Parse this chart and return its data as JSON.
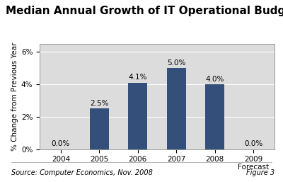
{
  "title": "Median Annual Growth of IT Operational Budgets",
  "categories": [
    "2004",
    "2005",
    "2006",
    "2007",
    "2008",
    "2009\nForecast"
  ],
  "values": [
    0.0,
    2.5,
    4.1,
    5.0,
    4.0,
    0.0
  ],
  "labels": [
    "0.0%",
    "2.5%",
    "4.1%",
    "5.0%",
    "4.0%",
    "0.0%"
  ],
  "bar_color": "#34507a",
  "ylabel": "% Change from Previous Year",
  "yticks": [
    0,
    2,
    4,
    6
  ],
  "ytick_labels": [
    "0%",
    "2%",
    "4%",
    "6%"
  ],
  "ylim": [
    0,
    6.5
  ],
  "source_text": "Source: Computer Economics, Nov. 2008",
  "figure_text": "Figure 3",
  "plot_bg_color": "#dcdcdc",
  "outer_bg": "#ffffff",
  "title_fontsize": 11,
  "label_fontsize": 7.5,
  "axis_fontsize": 7.5,
  "source_fontsize": 7,
  "bar_width": 0.5
}
